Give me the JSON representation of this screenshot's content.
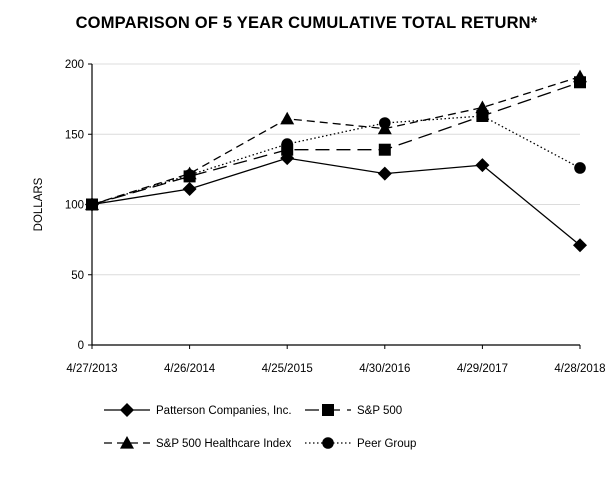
{
  "chart_data": {
    "type": "line",
    "title": "COMPARISON OF 5 YEAR CUMULATIVE TOTAL RETURN*",
    "xlabel": "",
    "ylabel": "DOLLARS",
    "categories": [
      "4/27/2013",
      "4/26/2014",
      "4/25/2015",
      "4/30/2016",
      "4/29/2017",
      "4/28/2018"
    ],
    "ylim": [
      0,
      200
    ],
    "yticks": [
      0,
      50,
      100,
      150,
      200
    ],
    "grid": true,
    "legend_position": "bottom",
    "series": [
      {
        "name": "Patterson Companies, Inc.",
        "values": [
          100,
          111,
          133,
          122,
          128,
          71
        ],
        "marker": "diamond",
        "line": "solid",
        "color": "#000000"
      },
      {
        "name": "S&P 500",
        "values": [
          100,
          120,
          139,
          139,
          163,
          187
        ],
        "marker": "square",
        "line": "dashed-long",
        "color": "#000000"
      },
      {
        "name": "S&P 500 Healthcare Index",
        "values": [
          100,
          122,
          161,
          154,
          169,
          191
        ],
        "marker": "triangle",
        "line": "dashed-short",
        "color": "#000000"
      },
      {
        "name": "Peer Group",
        "values": [
          100,
          121,
          143,
          158,
          163,
          126
        ],
        "marker": "circle",
        "line": "dotted",
        "color": "#000000"
      }
    ]
  }
}
